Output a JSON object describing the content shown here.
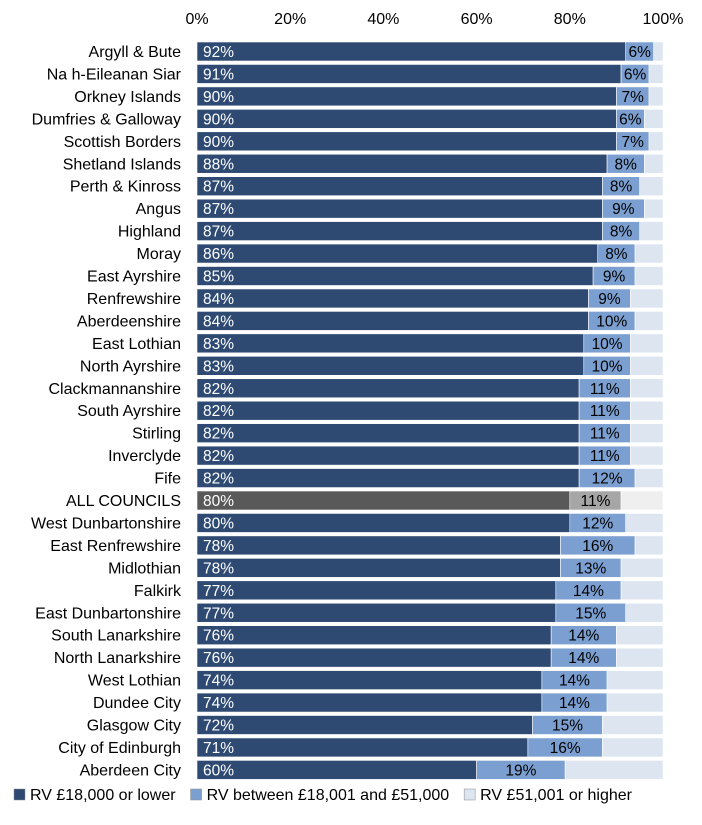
{
  "chart_data": {
    "type": "bar",
    "orientation": "horizontal",
    "stacked": true,
    "xlim": [
      0,
      100
    ],
    "x_ticks": [
      "0%",
      "20%",
      "40%",
      "60%",
      "80%",
      "100%"
    ],
    "x_axis_position": "top",
    "grid": false,
    "legend_position": "bottom",
    "categories": [
      "Argyll & Bute",
      "Na h-Eileanan Siar",
      "Orkney Islands",
      "Dumfries & Galloway",
      "Scottish Borders",
      "Shetland Islands",
      "Perth & Kinross",
      "Angus",
      "Highland",
      "Moray",
      "East Ayrshire",
      "Renfrewshire",
      "Aberdeenshire",
      "East Lothian",
      "North Ayrshire",
      "Clackmannanshire",
      "South Ayrshire",
      "Stirling",
      "Inverclyde",
      "Fife",
      "ALL COUNCILS",
      "West Dunbartonshire",
      "East Renfrewshire",
      "Midlothian",
      "Falkirk",
      "East Dunbartonshire",
      "South Lanarkshire",
      "North Lanarkshire",
      "West Lothian",
      "Dundee City",
      "Glasgow City",
      "City of Edinburgh",
      "Aberdeen City"
    ],
    "highlight_category": "ALL COUNCILS",
    "series": [
      {
        "name": "RV £18,000 or lower",
        "color": "#2e4a73",
        "highlight_color": "#595959",
        "values": [
          92,
          91,
          90,
          90,
          90,
          88,
          87,
          87,
          87,
          86,
          85,
          84,
          84,
          83,
          83,
          82,
          82,
          82,
          82,
          82,
          80,
          80,
          78,
          78,
          77,
          77,
          76,
          76,
          74,
          74,
          72,
          71,
          60
        ],
        "labels": [
          "92%",
          "91%",
          "90%",
          "90%",
          "90%",
          "88%",
          "87%",
          "87%",
          "87%",
          "86%",
          "85%",
          "84%",
          "84%",
          "83%",
          "83%",
          "82%",
          "82%",
          "82%",
          "82%",
          "82%",
          "80%",
          "80%",
          "78%",
          "78%",
          "77%",
          "77%",
          "76%",
          "76%",
          "74%",
          "74%",
          "72%",
          "71%",
          "60%"
        ]
      },
      {
        "name": "RV between £18,001 and £51,000",
        "color": "#7b9fd0",
        "highlight_color": "#a6a6a6",
        "values": [
          6,
          6,
          7,
          6,
          7,
          8,
          8,
          9,
          8,
          8,
          9,
          9,
          10,
          10,
          10,
          11,
          11,
          11,
          11,
          12,
          11,
          12,
          16,
          13,
          14,
          15,
          14,
          14,
          14,
          14,
          15,
          16,
          19
        ],
        "labels": [
          "6%",
          "6%",
          "7%",
          "6%",
          "7%",
          "8%",
          "8%",
          "9%",
          "8%",
          "8%",
          "9%",
          "9%",
          "10%",
          "10%",
          "10%",
          "11%",
          "11%",
          "11%",
          "11%",
          "12%",
          "11%",
          "12%",
          "16%",
          "13%",
          "14%",
          "15%",
          "14%",
          "14%",
          "14%",
          "14%",
          "15%",
          "16%",
          "19%"
        ]
      },
      {
        "name": "RV £51,001 or higher",
        "color": "#dde5f1",
        "highlight_color": "#efefef",
        "values": [
          2,
          3,
          3,
          4,
          3,
          4,
          5,
          4,
          5,
          6,
          6,
          7,
          6,
          7,
          7,
          7,
          7,
          7,
          7,
          6,
          9,
          8,
          6,
          9,
          9,
          8,
          10,
          10,
          12,
          12,
          13,
          13,
          21
        ],
        "labels": []
      }
    ]
  }
}
